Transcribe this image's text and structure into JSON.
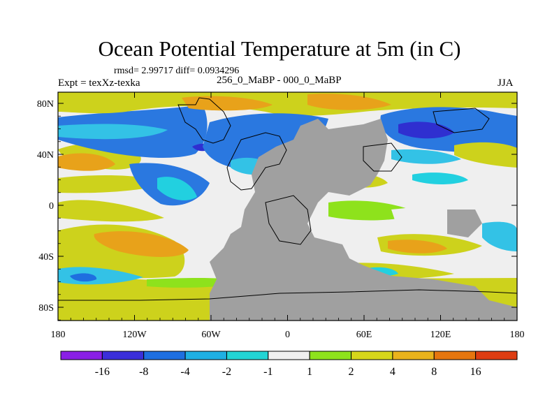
{
  "title": "Ocean Potential Temperature at 5m (in C)",
  "stats": "rmsd= 2.99717 diff= 0.0934296",
  "experiment": "Expt = texXz-texka",
  "subtitle": "256_0_MaBP - 000_0_MaBP",
  "season": "JJA",
  "axes": {
    "x_ticks": [
      "180",
      "120W",
      "60W",
      "0",
      "60E",
      "120E",
      "180"
    ],
    "y_ticks": [
      "80N",
      "40N",
      "0",
      "40S",
      "80S"
    ]
  },
  "colorbar": {
    "colors": [
      "#8a1fe6",
      "#3b2fd9",
      "#1e6fe0",
      "#1fb0e3",
      "#22d4d4",
      "#f0f0f0",
      "#8ee21c",
      "#d6d61a",
      "#eab31c",
      "#e6760f",
      "#de3d12"
    ],
    "labels": [
      "-16",
      "-8",
      "-4",
      "-2",
      "-1",
      "1",
      "2",
      "4",
      "8",
      "16"
    ]
  },
  "palette": {
    "land": "#a0a0a0",
    "neutral": "#efefef",
    "blue": "#2a78e0",
    "deep_blue": "#2f2fd0",
    "cyan": "#22d0e0",
    "light_cyan": "#33c2e6",
    "green": "#8ee21c",
    "yellow": "#cdd21c",
    "orange": "#e8a21a"
  }
}
